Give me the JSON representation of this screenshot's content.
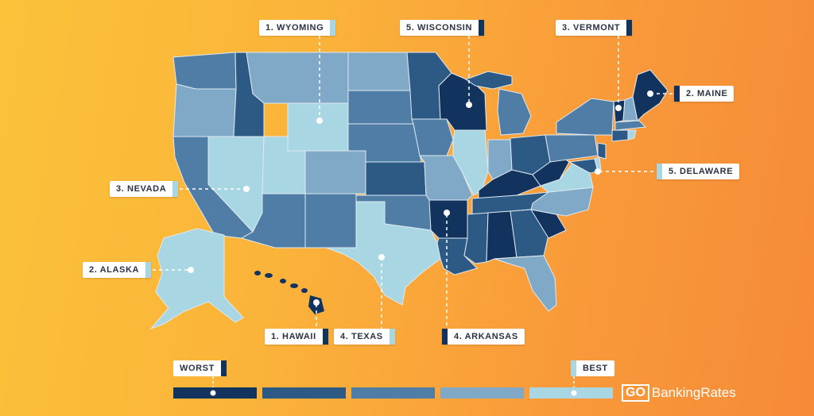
{
  "colors": {
    "shade_1_worst": "#13335f",
    "shade_2": "#2c5a85",
    "shade_3": "#4f7da6",
    "shade_4": "#7fa9c6",
    "shade_5_best": "#a8d6e2",
    "background_start": "#fbc23a",
    "background_end": "#f58a38"
  },
  "callouts": [
    {
      "id": "wyoming",
      "label": "1. WYOMING",
      "swatch": "#a8d6e2"
    },
    {
      "id": "wisconsin",
      "label": "5. WISCONSIN",
      "swatch": "#13335f"
    },
    {
      "id": "vermont",
      "label": "3. VERMONT",
      "swatch": "#13335f"
    },
    {
      "id": "maine",
      "label": "2. MAINE",
      "swatch": "#13335f"
    },
    {
      "id": "delaware",
      "label": "5. DELAWARE",
      "swatch": "#a8d6e2"
    },
    {
      "id": "nevada",
      "label": "3. NEVADA",
      "swatch": "#a8d6e2"
    },
    {
      "id": "alaska",
      "label": "2. ALASKA",
      "swatch": "#a8d6e2"
    },
    {
      "id": "hawaii",
      "label": "1. HAWAII",
      "swatch": "#13335f"
    },
    {
      "id": "texas",
      "label": "4. TEXAS",
      "swatch": "#a8d6e2"
    },
    {
      "id": "arkansas",
      "label": "4. ARKANSAS",
      "swatch": "#13335f"
    }
  ],
  "legend": {
    "worst_label": "WORST",
    "best_label": "BEST"
  },
  "brand": {
    "go": "GO",
    "rest": "BankingRates"
  }
}
